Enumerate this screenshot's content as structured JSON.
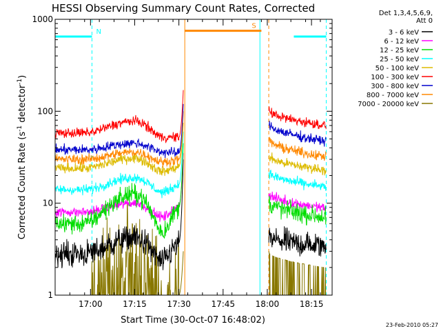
{
  "chart_data": {
    "type": "line",
    "title": "HESSI Observing Summary Count Rates, Corrected",
    "xlabel": "Start Time (30-Oct-07 16:48:02)",
    "ylabel_parts": [
      "Corrected Count Rate (s",
      "-1",
      " detector",
      "-1",
      ")"
    ],
    "y_scale": "log",
    "ylim": [
      1,
      1000
    ],
    "y_ticks": [
      {
        "value": 1,
        "label": "1"
      },
      {
        "value": 10,
        "label": "10"
      },
      {
        "value": 100,
        "label": "100"
      },
      {
        "value": 1000,
        "label": "1000"
      }
    ],
    "xlim_minutes": [
      0,
      94
    ],
    "x_ticks": [
      {
        "label": "17:00",
        "minute": 12
      },
      {
        "label": "17:15",
        "minute": 27
      },
      {
        "label": "17:30",
        "minute": 42
      },
      {
        "label": "17:45",
        "minute": 57
      },
      {
        "label": "18:00",
        "minute": 72
      },
      {
        "label": "18:15",
        "minute": 87
      }
    ],
    "legend_header": [
      "Det 1,3,4,5,6,9,",
      "Att 0"
    ],
    "legend_position": "right",
    "series": [
      {
        "name": "3 - 6 keV",
        "color": "#000000",
        "pre": [
          2.8,
          4.2,
          2.3,
          3.7
        ],
        "post": [
          4.3,
          3.4
        ],
        "flare": 30
      },
      {
        "name": "6 - 12 keV",
        "color": "#ff00ff",
        "pre": [
          8.0,
          10.0,
          7.0,
          9.5
        ],
        "post": [
          13.0,
          8.8
        ],
        "flare": 35
      },
      {
        "name": "12 - 25 keV",
        "color": "#00dd00",
        "pre": [
          6.0,
          12.5,
          4.8,
          9.0
        ],
        "post": [
          10.5,
          7.0
        ],
        "flare": 45
      },
      {
        "name": "25 - 50 keV",
        "color": "#00ffff",
        "pre": [
          14.0,
          19.0,
          13.0,
          16.0
        ],
        "post": [
          22.0,
          15.0
        ],
        "flare": 60
      },
      {
        "name": "50 - 100 keV",
        "color": "#ddbb00",
        "pre": [
          24.0,
          31.0,
          22.0,
          25.0
        ],
        "post": [
          33.0,
          23.0
        ],
        "flare": 75
      },
      {
        "name": "100 - 300 keV",
        "color": "#ff0000",
        "pre": [
          58.0,
          78.0,
          52.0,
          52.0
        ],
        "post": [
          105.0,
          70.0
        ],
        "flare": 170
      },
      {
        "name": "300 - 800 keV",
        "color": "#0000cc",
        "pre": [
          38.0,
          45.0,
          36.0,
          35.0
        ],
        "post": [
          75.0,
          47.0
        ],
        "flare": 120
      },
      {
        "name": "800 - 7000 keV",
        "color": "#ff8800",
        "pre": [
          30.0,
          36.0,
          28.0,
          30.0
        ],
        "post": [
          50.0,
          32.0
        ],
        "flare": 100
      },
      {
        "name": "7000 - 20000 keV",
        "color": "#887700",
        "pre": [
          1.0,
          2.5,
          1.0,
          1.0
        ],
        "post": [
          1.5,
          1.0
        ],
        "flare": 3
      }
    ],
    "annotations": [
      {
        "label": "N",
        "color": "#00ffff",
        "x_range_min": [
          0,
          12.5
        ],
        "y_value": 650
      },
      {
        "label": "S",
        "color": "#ff8800",
        "x_range_min": [
          44,
          70
        ],
        "y_value": 750
      },
      {
        "label": "",
        "color": "#00ffff",
        "x_range_min": [
          81,
          92
        ],
        "y_value": 650
      }
    ],
    "vertical_markers_min": [
      {
        "minute": 12.5,
        "color": "#00ffff",
        "style": "dashed"
      },
      {
        "minute": 44,
        "color": "#ff8800",
        "style": "solid"
      },
      {
        "minute": 69.5,
        "color": "#00ffff",
        "style": "solid"
      },
      {
        "minute": 72.5,
        "color": "#ff8800",
        "style": "dashed"
      },
      {
        "minute": 92,
        "color": "#00ffff",
        "style": "dashed"
      }
    ],
    "data_gap_minutes": [
      44,
      72
    ]
  },
  "footer_date": "23-Feb-2010 05:27"
}
